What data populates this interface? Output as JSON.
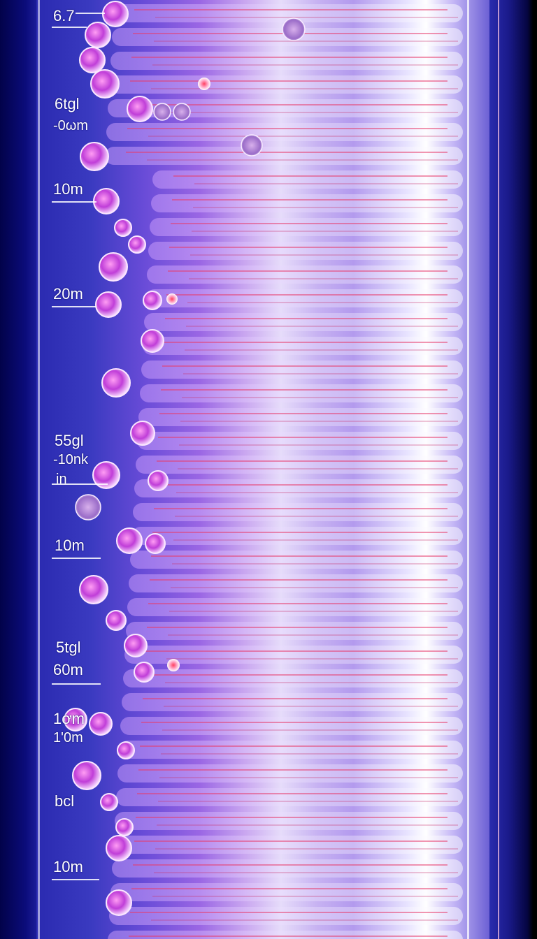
{
  "image": {
    "description_colors": {
      "background": "#04045a",
      "cell_body": "#c04cd8",
      "streak": "#e0305a",
      "highlight": "#ffffff"
    }
  },
  "scale_labels": {
    "l1": "6.7",
    "l2a": "6tgl",
    "l2b": "-0ωm",
    "l3": "10m",
    "l4": "20m",
    "l5a": "55gl",
    "l5b": "-10nk",
    "l5c": "in",
    "l6": "10m",
    "l7a": "5tgl",
    "l7b": "60m",
    "l8a": "1ơm",
    "l8b": "1'0m",
    "l9": "bcl",
    "l10": "10m"
  }
}
